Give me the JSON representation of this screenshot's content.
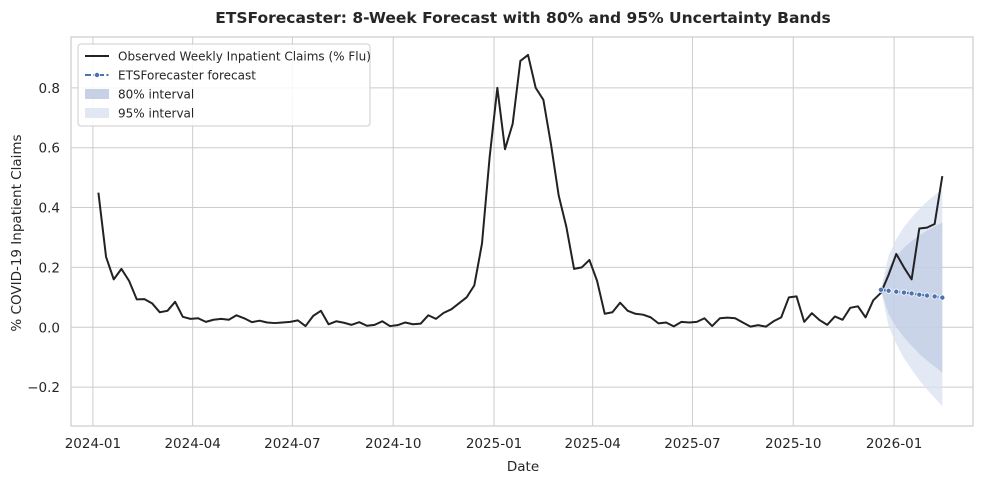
{
  "chart_data": {
    "type": "line",
    "title": "ETSForecaster: 8-Week Forecast with 80% and 95% Uncertainty Bands",
    "xlabel": "Date",
    "ylabel": "% COVID-19 Inpatient Claims",
    "xlim": [
      "2023-12-12",
      "2026-03-14"
    ],
    "ylim": [
      -0.33,
      0.97
    ],
    "y_ticks": [
      -0.2,
      0.0,
      0.2,
      0.4,
      0.6,
      0.8
    ],
    "y_tick_labels": [
      "−0.2",
      "0.0",
      "0.2",
      "0.4",
      "0.6",
      "0.8"
    ],
    "x_ticks": [
      "2024-01-01",
      "2024-04-01",
      "2024-07-01",
      "2024-10-01",
      "2025-01-01",
      "2025-04-01",
      "2025-07-01",
      "2025-10-01",
      "2026-01-01"
    ],
    "x_tick_labels": [
      "2024-01",
      "2024-04",
      "2024-07",
      "2024-10",
      "2025-01",
      "2025-04",
      "2025-07",
      "2025-10",
      "2026-01"
    ],
    "grid": true,
    "legend_position": "top-left",
    "colors": {
      "observed": "#222222",
      "forecast": "#4c72b0",
      "band80": "#b8c6e0",
      "band95": "#dae2f0",
      "grid": "#cccccc",
      "frame": "#cccccc"
    },
    "series": [
      {
        "name": "Observed Weekly Inpatient Claims (% Flu)",
        "style": "line",
        "x": [
          "2024-01-06",
          "2024-01-13",
          "2024-01-20",
          "2024-01-27",
          "2024-02-03",
          "2024-02-10",
          "2024-02-17",
          "2024-02-24",
          "2024-03-02",
          "2024-03-09",
          "2024-03-16",
          "2024-03-23",
          "2024-03-30",
          "2024-04-06",
          "2024-04-13",
          "2024-04-20",
          "2024-04-27",
          "2024-05-04",
          "2024-05-11",
          "2024-05-18",
          "2024-05-25",
          "2024-06-01",
          "2024-06-08",
          "2024-06-15",
          "2024-06-22",
          "2024-06-29",
          "2024-07-06",
          "2024-07-13",
          "2024-07-20",
          "2024-07-27",
          "2024-08-03",
          "2024-08-10",
          "2024-08-17",
          "2024-08-24",
          "2024-08-31",
          "2024-09-07",
          "2024-09-14",
          "2024-09-21",
          "2024-09-28",
          "2024-10-05",
          "2024-10-12",
          "2024-10-19",
          "2024-10-26",
          "2024-11-02",
          "2024-11-09",
          "2024-11-16",
          "2024-11-23",
          "2024-11-30",
          "2024-12-07",
          "2024-12-14",
          "2024-12-21",
          "2024-12-28",
          "2025-01-04",
          "2025-01-11",
          "2025-01-18",
          "2025-01-25",
          "2025-02-01",
          "2025-02-08",
          "2025-02-15",
          "2025-02-22",
          "2025-03-01",
          "2025-03-08",
          "2025-03-15",
          "2025-03-22",
          "2025-03-29",
          "2025-04-05",
          "2025-04-12",
          "2025-04-19",
          "2025-04-26",
          "2025-05-03",
          "2025-05-10",
          "2025-05-17",
          "2025-05-24",
          "2025-05-31",
          "2025-06-07",
          "2025-06-14",
          "2025-06-21",
          "2025-06-28",
          "2025-07-05",
          "2025-07-12",
          "2025-07-19",
          "2025-07-26",
          "2025-08-02",
          "2025-08-09",
          "2025-08-16",
          "2025-08-23",
          "2025-08-30",
          "2025-09-06",
          "2025-09-13",
          "2025-09-20",
          "2025-09-27",
          "2025-10-04",
          "2025-10-11",
          "2025-10-18",
          "2025-10-25",
          "2025-11-01",
          "2025-11-08",
          "2025-11-15",
          "2025-11-22",
          "2025-11-29",
          "2025-12-06",
          "2025-12-13",
          "2025-12-20",
          "2025-12-27",
          "2026-01-03",
          "2026-01-10",
          "2026-01-17",
          "2026-01-24",
          "2026-01-31",
          "2026-02-07",
          "2026-02-14"
        ],
        "y": [
          0.45,
          0.235,
          0.16,
          0.195,
          0.155,
          0.093,
          0.094,
          0.08,
          0.05,
          0.055,
          0.085,
          0.035,
          0.028,
          0.03,
          0.018,
          0.025,
          0.028,
          0.025,
          0.04,
          0.03,
          0.017,
          0.022,
          0.016,
          0.014,
          0.016,
          0.018,
          0.023,
          0.004,
          0.038,
          0.055,
          0.01,
          0.02,
          0.015,
          0.008,
          0.017,
          0.005,
          0.008,
          0.02,
          0.004,
          0.007,
          0.016,
          0.01,
          0.012,
          0.04,
          0.028,
          0.048,
          0.06,
          0.08,
          0.1,
          0.14,
          0.28,
          0.57,
          0.8,
          0.595,
          0.68,
          0.89,
          0.91,
          0.8,
          0.76,
          0.61,
          0.44,
          0.335,
          0.195,
          0.2,
          0.225,
          0.155,
          0.045,
          0.05,
          0.082,
          0.055,
          0.045,
          0.042,
          0.033,
          0.013,
          0.016,
          0.003,
          0.018,
          0.016,
          0.018,
          0.03,
          0.004,
          0.03,
          0.032,
          0.03,
          0.016,
          0.002,
          0.007,
          0.002,
          0.02,
          0.033,
          0.1,
          0.103,
          0.018,
          0.047,
          0.024,
          0.008,
          0.036,
          0.025,
          0.065,
          0.07,
          0.033,
          0.09,
          0.115,
          0.175,
          0.245,
          0.2,
          0.16,
          0.33,
          0.333,
          0.345,
          0.505
        ]
      },
      {
        "name": "ETSForecaster forecast",
        "style": "dashed-dot",
        "x": [
          "2025-12-20",
          "2025-12-27",
          "2026-01-03",
          "2026-01-10",
          "2026-01-17",
          "2026-01-24",
          "2026-01-31",
          "2026-02-07",
          "2026-02-14"
        ],
        "y": [
          0.125,
          0.122,
          0.119,
          0.116,
          0.113,
          0.109,
          0.106,
          0.103,
          0.099
        ]
      },
      {
        "name": "80% interval",
        "style": "band",
        "x": [
          "2025-12-20",
          "2025-12-27",
          "2026-01-03",
          "2026-01-10",
          "2026-01-17",
          "2026-01-24",
          "2026-01-31",
          "2026-02-07",
          "2026-02-14"
        ],
        "upper": [
          0.125,
          0.2,
          0.238,
          0.266,
          0.288,
          0.307,
          0.323,
          0.337,
          0.35
        ],
        "lower": [
          0.125,
          0.044,
          0.0,
          -0.034,
          -0.062,
          -0.089,
          -0.111,
          -0.131,
          -0.152
        ]
      },
      {
        "name": "95% interval",
        "style": "band",
        "x": [
          "2025-12-20",
          "2025-12-27",
          "2026-01-03",
          "2026-01-10",
          "2026-01-17",
          "2026-01-24",
          "2026-01-31",
          "2026-02-07",
          "2026-02-14"
        ],
        "upper": [
          0.125,
          0.24,
          0.294,
          0.335,
          0.367,
          0.395,
          0.42,
          0.442,
          0.462
        ],
        "lower": [
          0.125,
          0.004,
          -0.056,
          -0.103,
          -0.141,
          -0.177,
          -0.208,
          -0.236,
          -0.264
        ]
      }
    ]
  }
}
